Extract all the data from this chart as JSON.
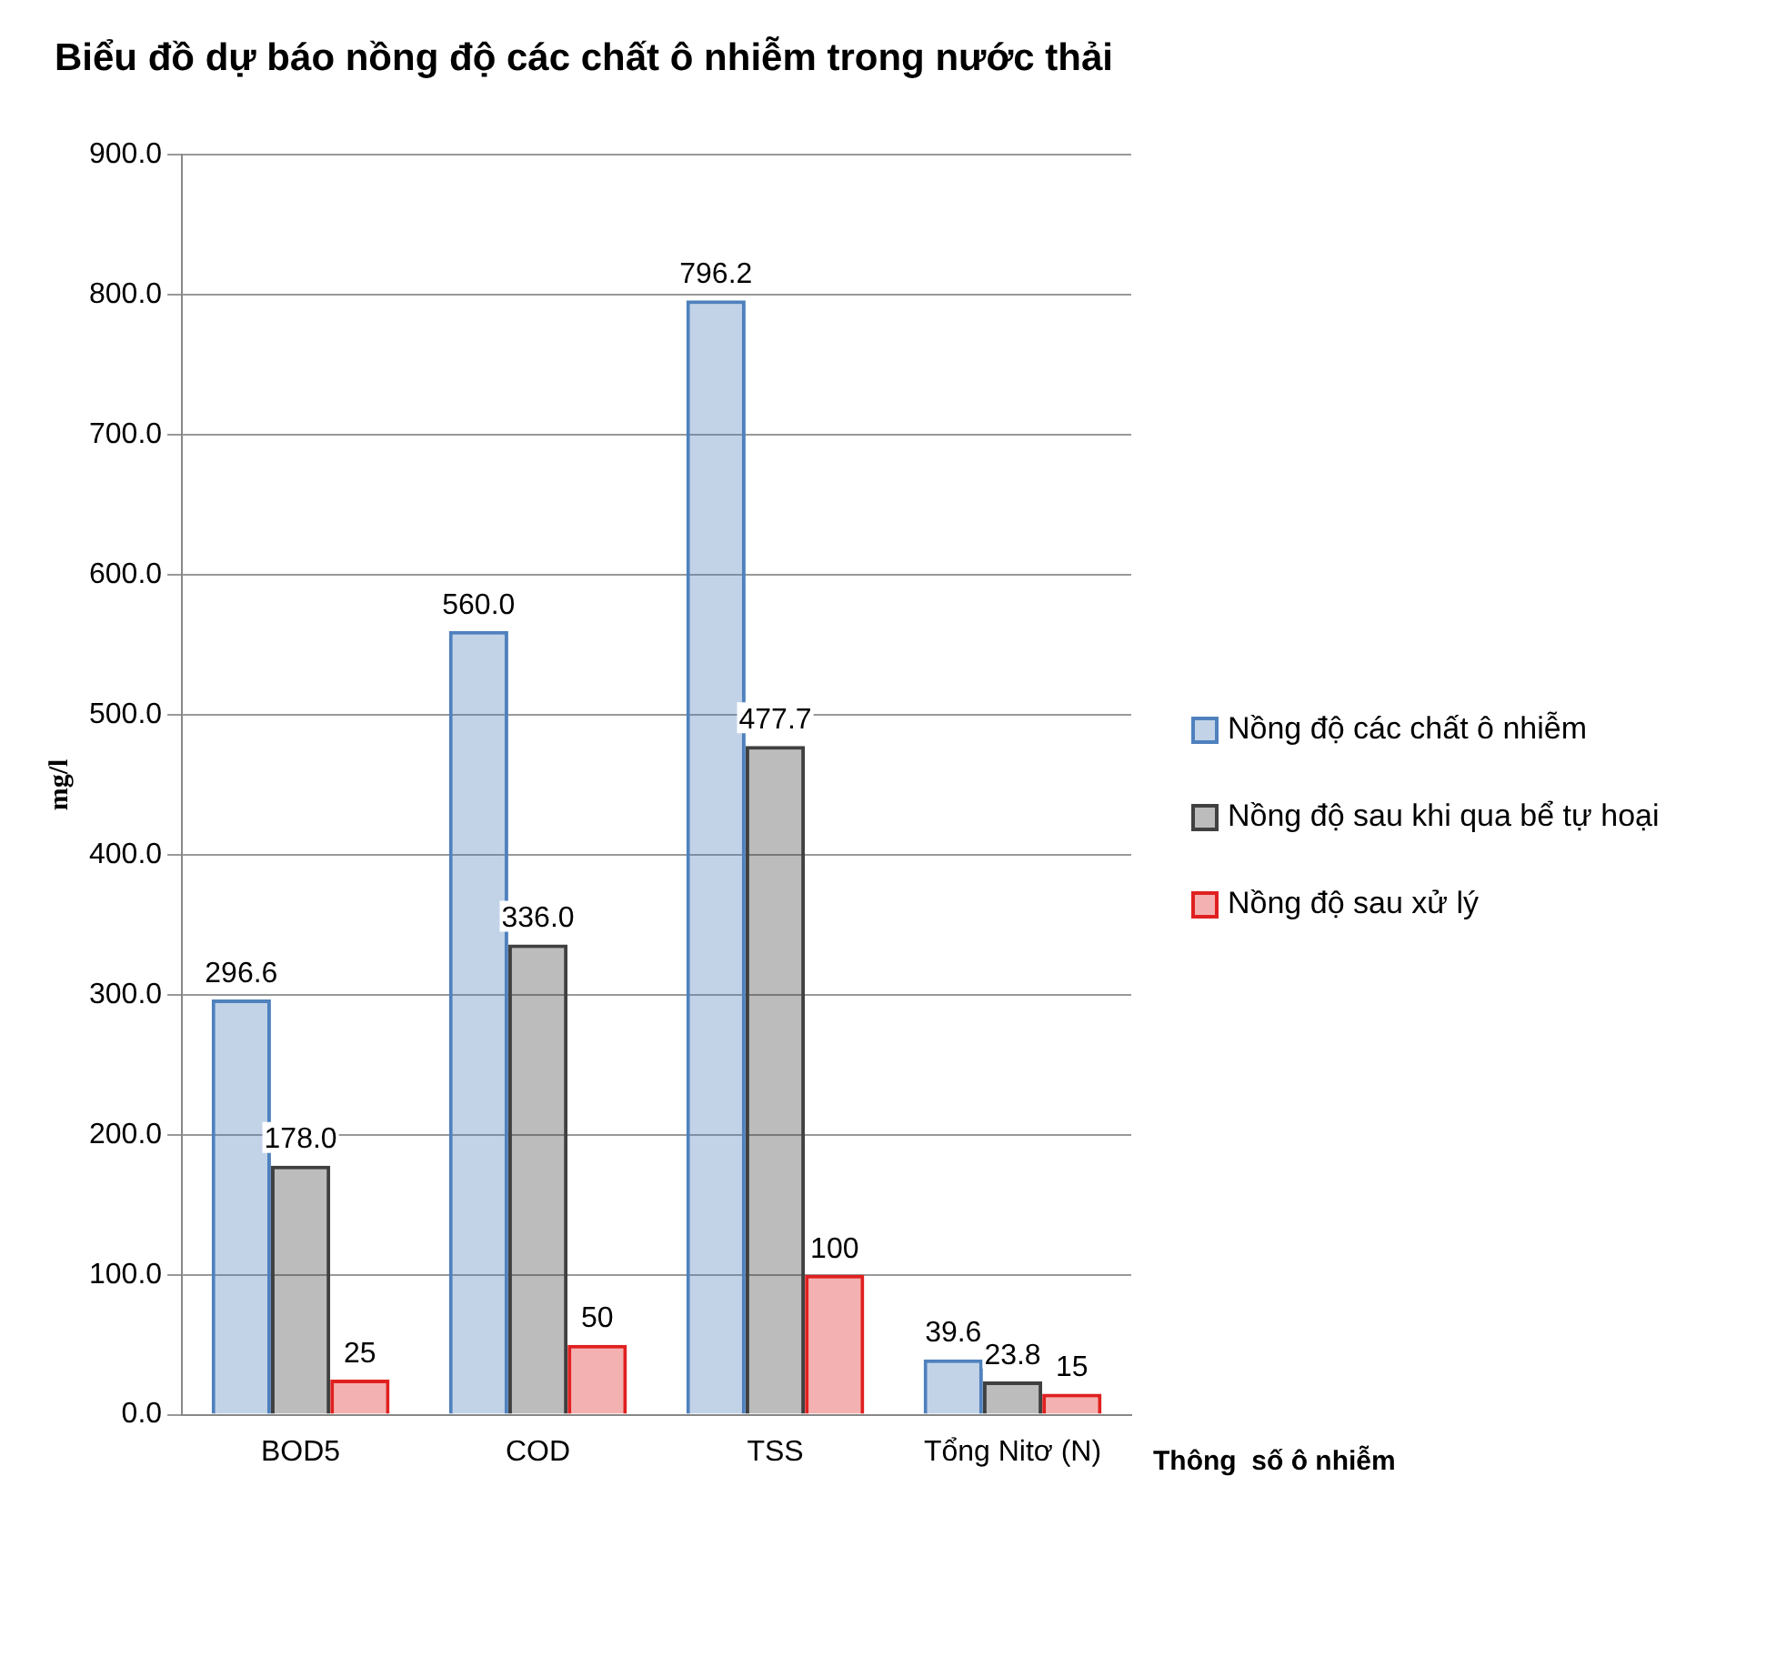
{
  "chart_data": {
    "type": "bar",
    "title": "Biểu đồ dự báo nồng độ các chất ô nhiễm trong nước thải",
    "xlabel": "Thông  số ô nhiễm",
    "ylabel": "mg/l",
    "categories": [
      "BOD5",
      "COD",
      "TSS",
      "Tổng Nitơ (N)"
    ],
    "series": [
      {
        "name": "Nồng độ các chất ô nhiễm",
        "color": "#4f81bd",
        "values": [
          296.6,
          560.0,
          796.2,
          39.6
        ],
        "value_labels": [
          "296.6",
          "560.0",
          "796.2",
          "39.6"
        ]
      },
      {
        "name": "Nồng độ sau khi qua bể tự hoại",
        "color": "#404040",
        "values": [
          178.0,
          336.0,
          477.7,
          23.8
        ],
        "value_labels": [
          "178.0",
          "336.0",
          "477.7",
          "23.8"
        ]
      },
      {
        "name": "Nồng độ sau xử lý",
        "color": "#e02020",
        "values": [
          25,
          50,
          100,
          15
        ],
        "value_labels": [
          "25",
          "50",
          "100",
          "15"
        ]
      }
    ],
    "ylim": [
      0,
      900
    ],
    "yticks": [
      {
        "value": 0,
        "label": "0.0"
      },
      {
        "value": 100,
        "label": "100.0"
      },
      {
        "value": 200,
        "label": "200.0"
      },
      {
        "value": 300,
        "label": "300.0"
      },
      {
        "value": 400,
        "label": "400.0"
      },
      {
        "value": 500,
        "label": "500.0"
      },
      {
        "value": 600,
        "label": "600.0"
      },
      {
        "value": 700,
        "label": "700.0"
      },
      {
        "value": 800,
        "label": "800.0"
      },
      {
        "value": 900,
        "label": "900.0"
      }
    ],
    "grid": "y",
    "legend": "right"
  }
}
